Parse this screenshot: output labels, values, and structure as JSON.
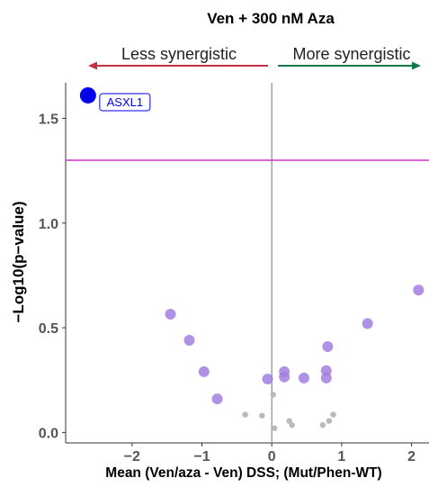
{
  "chart_data": {
    "type": "scatter",
    "title": "Ven + 300 nM Aza",
    "xlabel": "Mean (Ven/aza - Ven) DSS;  (Mut/Phen-WT)",
    "ylabel": "−Log10(p−value)",
    "xlim": [
      -2.95,
      2.25
    ],
    "ylim": [
      -0.05,
      1.67
    ],
    "x_ticks": [
      -2,
      -1,
      0,
      1,
      2
    ],
    "x_tick_labels": [
      "−2",
      "−1",
      "0",
      "1",
      "2"
    ],
    "y_ticks": [
      0.0,
      0.5,
      1.0,
      1.5
    ],
    "y_tick_labels": [
      "0.0",
      "0.5",
      "1.0",
      "1.5"
    ],
    "threshold_y": 1.3,
    "vline_x": 0,
    "grid": false,
    "annotations": {
      "left_arrow_label": "Less synergistic",
      "right_arrow_label": "More synergistic"
    },
    "colors": {
      "significant": "#0000ee",
      "moderate": "#a27fe0",
      "weak": "#b9b9b9",
      "threshold_line": "#cc33cc",
      "less_arrow": "#c03040",
      "more_arrow": "#107a4a",
      "zero_line": "#8c8c8c"
    },
    "points": [
      {
        "x": -2.63,
        "y": 1.61,
        "label": "ASXL1",
        "group": "significant"
      },
      {
        "x": -1.45,
        "y": 0.565,
        "group": "moderate"
      },
      {
        "x": -1.18,
        "y": 0.44,
        "group": "moderate"
      },
      {
        "x": -0.97,
        "y": 0.29,
        "group": "moderate"
      },
      {
        "x": -0.78,
        "y": 0.16,
        "group": "moderate"
      },
      {
        "x": -0.38,
        "y": 0.085,
        "group": "weak"
      },
      {
        "x": -0.14,
        "y": 0.08,
        "group": "weak"
      },
      {
        "x": -0.06,
        "y": 0.255,
        "group": "moderate"
      },
      {
        "x": 0.02,
        "y": 0.18,
        "group": "weak"
      },
      {
        "x": 0.04,
        "y": 0.02,
        "group": "weak"
      },
      {
        "x": 0.18,
        "y": 0.29,
        "group": "moderate"
      },
      {
        "x": 0.18,
        "y": 0.265,
        "group": "moderate"
      },
      {
        "x": 0.25,
        "y": 0.055,
        "group": "weak"
      },
      {
        "x": 0.29,
        "y": 0.035,
        "group": "weak"
      },
      {
        "x": 0.46,
        "y": 0.26,
        "group": "moderate"
      },
      {
        "x": 0.73,
        "y": 0.035,
        "group": "weak"
      },
      {
        "x": 0.78,
        "y": 0.295,
        "group": "moderate"
      },
      {
        "x": 0.78,
        "y": 0.26,
        "group": "moderate"
      },
      {
        "x": 0.8,
        "y": 0.41,
        "group": "moderate"
      },
      {
        "x": 0.82,
        "y": 0.055,
        "group": "weak"
      },
      {
        "x": 0.88,
        "y": 0.085,
        "group": "weak"
      },
      {
        "x": 1.37,
        "y": 0.52,
        "group": "moderate"
      },
      {
        "x": 2.1,
        "y": 0.68,
        "group": "moderate"
      }
    ]
  }
}
